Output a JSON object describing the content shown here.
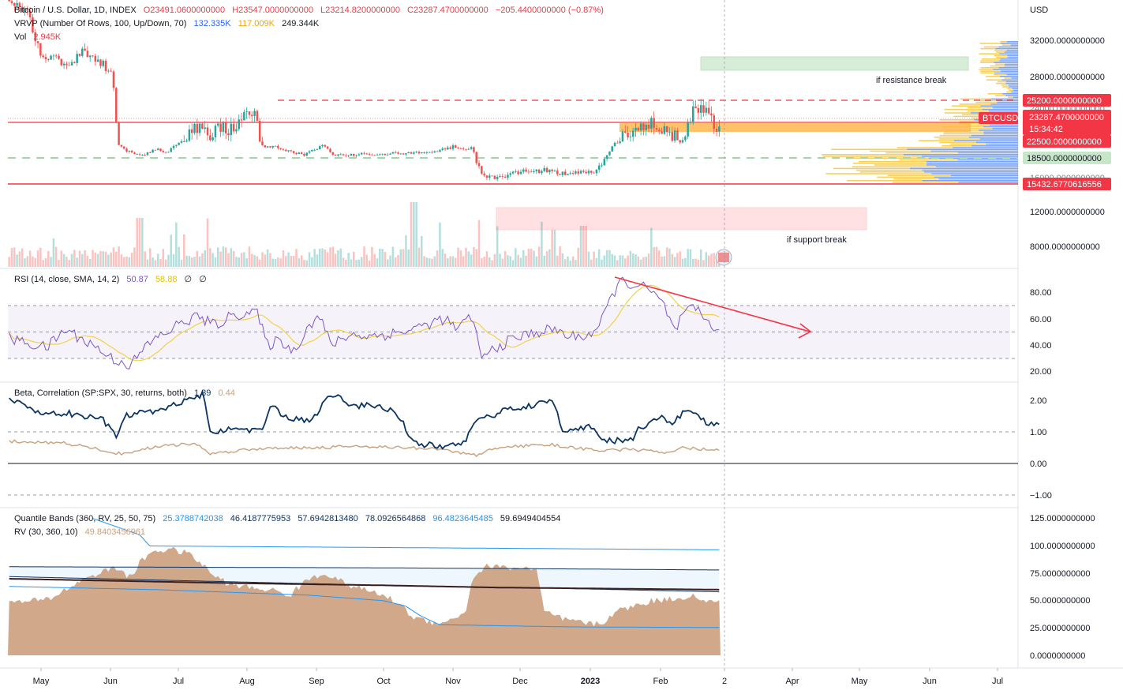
{
  "legend": {
    "main": {
      "symbol": "Bitcoin / U.S. Dollar, 1D, INDEX",
      "open": "O23491.0600000000",
      "high": "H23547.0000000000",
      "low": "L23214.8200000000",
      "close": "C23287.4700000000",
      "change": "−205.4400000000 (−0.87%)"
    },
    "vrvp": {
      "label": "VRVP (Number Of Rows, 100, Up/Down, 70)",
      "up": "132.335K",
      "down": "117.009K",
      "total": "249.344K"
    },
    "vol": {
      "label": "Vol",
      "value": "2.945K"
    },
    "rsi": {
      "label": "RSI (14, close, SMA, 14, 2)",
      "rsi": "50.87",
      "sma": "58.88",
      "e1": "∅",
      "e2": "∅"
    },
    "beta": {
      "label": "Beta, Correlation (SP:SPX, 30, returns, both)",
      "beta": "1.39",
      "corr": "0.44"
    },
    "qb": {
      "label": "Quantile Bands (360, RV, 25, 50, 75)",
      "v1": "25.3788742038",
      "v2": "46.4187775953",
      "v3": "57.6942813480",
      "v4": "78.0926564868",
      "v5": "96.4823645485",
      "v6": "59.6949404554"
    },
    "rv": {
      "label": "RV (30, 360, 10)",
      "value": "49.8403456961"
    }
  },
  "annotations": {
    "resistance": "if resistance break",
    "support": "if support break"
  },
  "price_axis": {
    "currency": "USD",
    "ticks": [
      "32000.0000000000",
      "28000.0000000000",
      "12000.0000000000",
      "8000.0000000000"
    ],
    "hidden_tick": "24000.0000000000",
    "partial_tick": "16000.0000000000",
    "tags": {
      "level_25200": "25200.0000000000",
      "symbol": "BTCUSD",
      "last": "23287.4700000000",
      "countdown": "15:34:42",
      "level_22500": "22500.0000000000",
      "level_18500": "18500.0000000000",
      "level_15432": "15432.6770616556"
    }
  },
  "rsi_axis": {
    "ticks": [
      "80.00",
      "60.00",
      "40.00",
      "20.00"
    ]
  },
  "beta_axis": {
    "ticks": [
      "2.00",
      "1.00",
      "0.00",
      "−1.00"
    ]
  },
  "qb_axis": {
    "ticks": [
      "125.0000000000",
      "100.0000000000",
      "75.0000000000",
      "50.0000000000",
      "25.0000000000",
      "0.0000000000"
    ]
  },
  "time_axis": {
    "labels": [
      "May",
      "Jun",
      "Jul",
      "Aug",
      "Sep",
      "Oct",
      "Nov",
      "Dec",
      "2023",
      "Feb",
      "2",
      "Apr",
      "May",
      "Jun",
      "Jul"
    ]
  },
  "colors": {
    "up": "#26a69a",
    "down": "#ef5350",
    "red_line": "#f23645",
    "green_dash": "#a5d6a7",
    "vrvp_blue": "#5b8def",
    "vrvp_yellow": "#f2c230",
    "rsi": "#7e57c2",
    "rsi_ma": "#f0d34a",
    "beta": "#0c3563",
    "corr": "#c8a07c",
    "rv_fill": "#c99a76"
  },
  "chart_data": [
    {
      "type": "candlestick",
      "title": "Bitcoin / U.S. Dollar, 1D, INDEX",
      "ylim": [
        7000,
        35000
      ],
      "x": [
        "2022-05",
        "2022-06",
        "2022-07",
        "2022-08",
        "2022-09",
        "2022-10",
        "2022-11",
        "2022-12",
        "2023-01",
        "2023-02"
      ],
      "close_approx": [
        30000,
        19500,
        23000,
        20000,
        19500,
        20500,
        16500,
        16600,
        23000,
        23287
      ],
      "horizontal_levels": [
        25200,
        22500,
        18500,
        15432.6770616556
      ]
    },
    {
      "type": "line",
      "title": "RSI (14, close, SMA, 14, 2)",
      "ylim": [
        15,
        90
      ],
      "bands": [
        30,
        50,
        70
      ],
      "series": [
        {
          "name": "RSI",
          "last": 50.87
        },
        {
          "name": "SMA",
          "last": 58.88
        }
      ]
    },
    {
      "type": "line",
      "title": "Beta, Correlation (SP:SPX, 30, returns, both)",
      "ylim": [
        -1.2,
        2.3
      ],
      "series": [
        {
          "name": "Beta",
          "last": 1.39
        },
        {
          "name": "Correlation",
          "last": 0.44
        }
      ]
    },
    {
      "type": "area",
      "title": "Quantile Bands (360, RV, 25, 50, 75)",
      "ylim": [
        -5,
        130
      ],
      "series": [
        {
          "name": "RV",
          "last": 49.8403456961
        }
      ]
    }
  ]
}
